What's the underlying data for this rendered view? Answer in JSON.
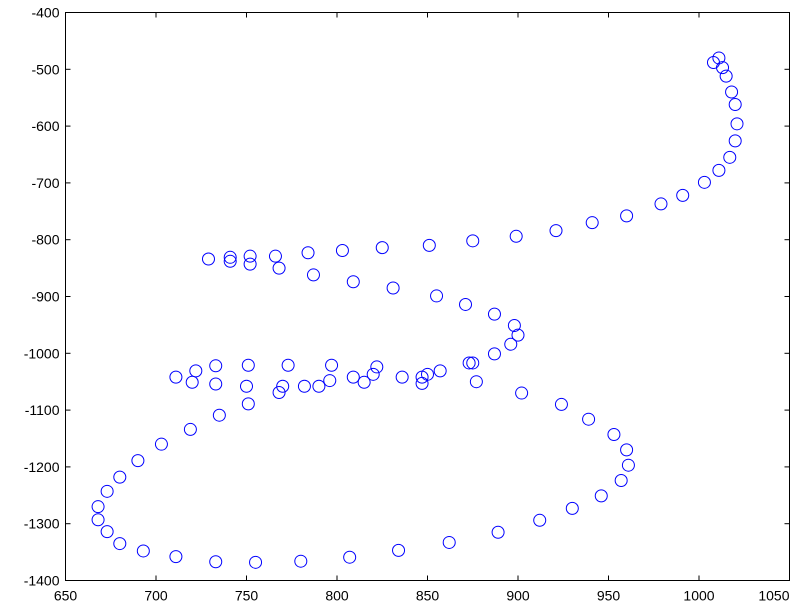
{
  "chart_data": {
    "type": "scatter",
    "title": "",
    "xlabel": "",
    "ylabel": "",
    "xlim": [
      650,
      1050
    ],
    "ylim": [
      -1400,
      -400
    ],
    "xticks": [
      650,
      700,
      750,
      800,
      850,
      900,
      950,
      1000,
      1050
    ],
    "yticks": [
      -400,
      -500,
      -600,
      -700,
      -800,
      -900,
      -1000,
      -1100,
      -1200,
      -1300,
      -1400
    ],
    "xtick_labels": [
      "650",
      "700",
      "750",
      "800",
      "850",
      "900",
      "950",
      "1000",
      "1050"
    ],
    "ytick_labels": [
      "-400",
      "-500",
      "-600",
      "-700",
      "-800",
      "-900",
      "-1000",
      "-1100",
      "-1200",
      "-1300",
      "-1400"
    ],
    "grid": false,
    "marker": "circle",
    "color": "#0000ff",
    "series": [
      {
        "points": [
          [
            1008,
            -488
          ],
          [
            1011,
            -480
          ],
          [
            1013,
            -497
          ],
          [
            1015,
            -512
          ],
          [
            1018,
            -540
          ],
          [
            1020,
            -562
          ],
          [
            1021,
            -596
          ],
          [
            1020,
            -626
          ],
          [
            1017,
            -655
          ],
          [
            1011,
            -678
          ],
          [
            1003,
            -699
          ],
          [
            991,
            -722
          ],
          [
            979,
            -737
          ],
          [
            960,
            -758
          ],
          [
            941,
            -770
          ],
          [
            921,
            -784
          ],
          [
            899,
            -794
          ],
          [
            875,
            -802
          ],
          [
            851,
            -810
          ],
          [
            825,
            -814
          ],
          [
            803,
            -819
          ],
          [
            784,
            -823
          ],
          [
            766,
            -829
          ],
          [
            752,
            -829
          ],
          [
            741,
            -831
          ],
          [
            729,
            -834
          ],
          [
            741,
            -838
          ],
          [
            752,
            -843
          ],
          [
            768,
            -850
          ],
          [
            787,
            -862
          ],
          [
            809,
            -874
          ],
          [
            831,
            -885
          ],
          [
            855,
            -899
          ],
          [
            871,
            -914
          ],
          [
            887,
            -931
          ],
          [
            898,
            -951
          ],
          [
            900,
            -968
          ],
          [
            896,
            -984
          ],
          [
            887,
            -1001
          ],
          [
            875,
            -1017
          ],
          [
            857,
            -1031
          ],
          [
            850,
            -1037
          ],
          [
            847,
            -1042
          ],
          [
            847,
            -1053
          ],
          [
            836,
            -1042
          ],
          [
            822,
            -1024
          ],
          [
            820,
            -1037
          ],
          [
            815,
            -1051
          ],
          [
            809,
            -1042
          ],
          [
            797,
            -1021
          ],
          [
            796,
            -1048
          ],
          [
            790,
            -1058
          ],
          [
            782,
            -1058
          ],
          [
            773,
            -1021
          ],
          [
            770,
            -1058
          ],
          [
            768,
            -1069
          ],
          [
            751,
            -1089
          ],
          [
            750,
            -1058
          ],
          [
            751,
            -1021
          ],
          [
            733,
            -1022
          ],
          [
            733,
            -1054
          ],
          [
            720,
            -1051
          ],
          [
            722,
            -1031
          ],
          [
            711,
            -1042
          ],
          [
            735,
            -1109
          ],
          [
            719,
            -1134
          ],
          [
            703,
            -1160
          ],
          [
            690,
            -1189
          ],
          [
            680,
            -1218
          ],
          [
            673,
            -1243
          ],
          [
            668,
            -1270
          ],
          [
            668,
            -1293
          ],
          [
            673,
            -1314
          ],
          [
            680,
            -1335
          ],
          [
            693,
            -1348
          ],
          [
            711,
            -1358
          ],
          [
            733,
            -1367
          ],
          [
            755,
            -1368
          ],
          [
            780,
            -1366
          ],
          [
            807,
            -1359
          ],
          [
            834,
            -1347
          ],
          [
            862,
            -1333
          ],
          [
            889,
            -1315
          ],
          [
            912,
            -1294
          ],
          [
            930,
            -1273
          ],
          [
            946,
            -1251
          ],
          [
            957,
            -1224
          ],
          [
            961,
            -1197
          ],
          [
            960,
            -1170
          ],
          [
            953,
            -1143
          ],
          [
            939,
            -1116
          ],
          [
            924,
            -1090
          ],
          [
            902,
            -1070
          ],
          [
            877,
            -1050
          ],
          [
            873,
            -1017
          ]
        ]
      }
    ]
  }
}
